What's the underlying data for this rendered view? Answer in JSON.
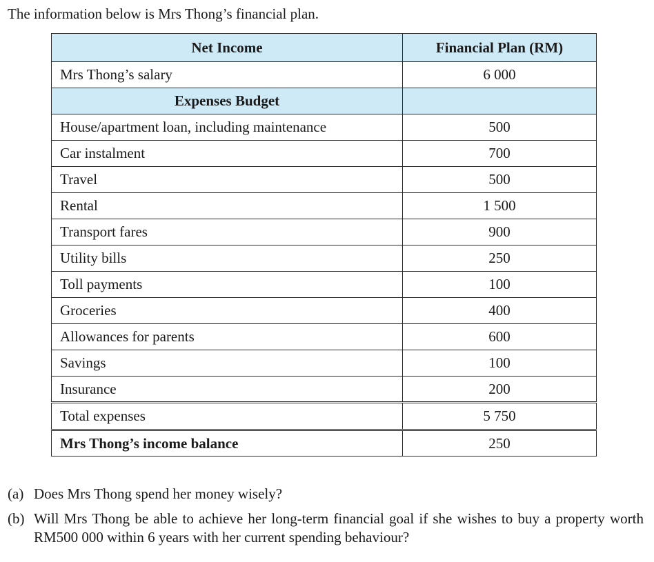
{
  "intro": "The information below is Mrs Thong’s financial plan.",
  "table": {
    "col_headers": [
      "Net Income",
      "Financial Plan (RM)"
    ],
    "salary": {
      "label": "Mrs Thong’s salary",
      "value": "6 000"
    },
    "expenses_heading": "Expenses Budget",
    "expenses": [
      {
        "label": "House/apartment loan, including maintenance",
        "value": "500"
      },
      {
        "label": "Car instalment",
        "value": "700"
      },
      {
        "label": "Travel",
        "value": "500"
      },
      {
        "label": "Rental",
        "value": "1 500"
      },
      {
        "label": "Transport fares",
        "value": "900"
      },
      {
        "label": "Utility bills",
        "value": "250"
      },
      {
        "label": "Toll payments",
        "value": "100"
      },
      {
        "label": "Groceries",
        "value": "400"
      },
      {
        "label": "Allowances for parents",
        "value": "600"
      },
      {
        "label": "Savings",
        "value": "100"
      },
      {
        "label": "Insurance",
        "value": "200"
      }
    ],
    "total": {
      "label": "Total expenses",
      "value": "5 750"
    },
    "balance": {
      "label": "Mrs Thong’s income balance",
      "value": "250"
    }
  },
  "questions": [
    {
      "mark": "(a)",
      "text": "Does Mrs Thong spend her money wisely?"
    },
    {
      "mark": "(b)",
      "text": "Will Mrs Thong be able to achieve her long-term financial goal if she wishes to buy a property worth RM500 000 within 6 years with her current spending behaviour?"
    }
  ]
}
